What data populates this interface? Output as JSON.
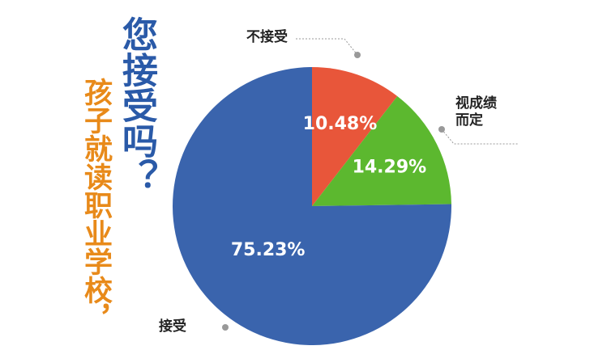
{
  "chart_data": {
    "type": "pie",
    "title": "您接受吗？",
    "subtitle": "孩子就读职业学校，",
    "categories": [
      "不接受",
      "视成绩而定",
      "接受"
    ],
    "values": [
      10.48,
      14.29,
      75.23
    ],
    "value_labels": [
      "10.48%",
      "14.29%",
      "75.23%"
    ],
    "colors": [
      "#e8563a",
      "#5cb82f",
      "#3a64ad"
    ]
  }
}
